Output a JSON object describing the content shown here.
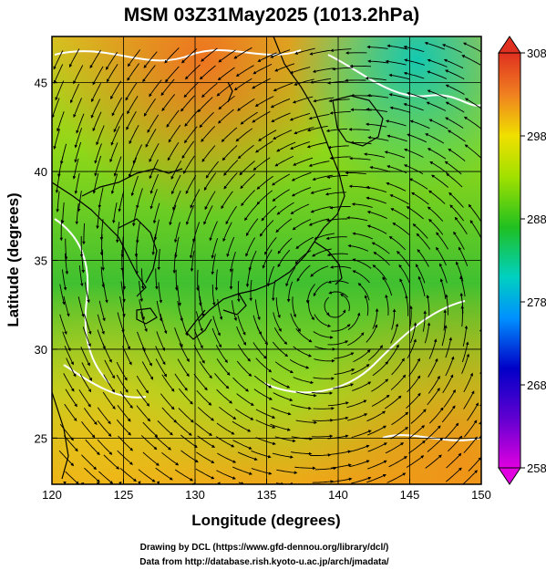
{
  "title": "MSM 03Z31May2025 (1013.2hPa)",
  "x_axis": {
    "label": "Longitude (degrees)",
    "range": [
      120,
      150
    ],
    "ticks": [
      120,
      125,
      130,
      135,
      140,
      145,
      150
    ]
  },
  "y_axis": {
    "label": "Latitude (degrees)",
    "range": [
      22.4,
      47.6
    ],
    "ticks": [
      25,
      30,
      35,
      40,
      45
    ]
  },
  "colorbar": {
    "range": [
      258,
      308
    ],
    "ticks": [
      258,
      268,
      278,
      288,
      298,
      308
    ],
    "colors": [
      "#e000e0",
      "#0000c8",
      "#0090ff",
      "#00d0c0",
      "#20c020",
      "#a0e000",
      "#f0e000",
      "#f08020",
      "#e03020"
    ]
  },
  "map": {
    "background_gradient": [
      "#e8a020",
      "#90e010",
      "#30c030",
      "#80d020",
      "#f0a010"
    ],
    "cyclone_center_lonlat": [
      139.8,
      32.4
    ]
  },
  "credits": {
    "line1": "Drawing by DCL (https://www.gfd-dennou.org/library/dcl/)",
    "line2": "Data from http://database.rish.kyoto-u.ac.jp/arch/jmadata/"
  }
}
